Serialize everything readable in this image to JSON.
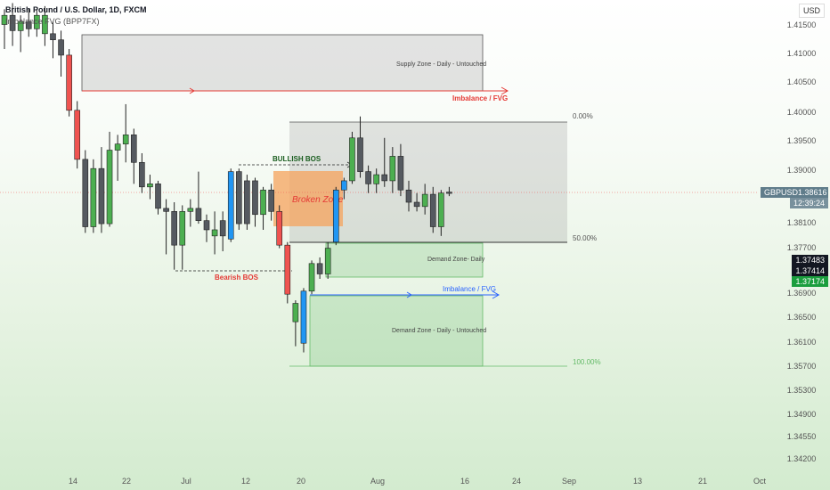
{
  "header": {
    "title": "British Pound / U.S. Dollar, 1D, FXCM",
    "subtitle": "Imbalance FVG (BPP7FX)"
  },
  "currency_button": "USD",
  "annotations": {
    "supply_zone": "Supply Zone - Daily - Untouched",
    "imbalance_top": "Imbalance / FVG",
    "imbalance_mid": "Imbalance / FVG",
    "bullish_bos": "BULLISH BOS",
    "bearish_bos": "Bearish BOS",
    "broken_zone": "Broken Zone",
    "demand_zone_1": "Demand Zone- Daily",
    "demand_zone_2": "Demand Zone - Daily  - Untouched",
    "fib_0": "0.00%",
    "fib_50": "50.00%",
    "fib_100": "100.00%"
  },
  "price_tags": {
    "symbol_label": "GBPUSD",
    "last_price": "1.38616",
    "countdown": "12:39:24",
    "tag1": "1.37483",
    "tag2": "1.37414",
    "tag3": "1.37174"
  },
  "colors": {
    "bull": "#4caf50",
    "bear": "#555a60",
    "strong_bull": "#2196f3",
    "strong_bear": "#ef5350",
    "imbalance_red": "#e53935",
    "imbalance_blue": "#2962ff",
    "broken_zone_fill": "#f5a35c",
    "grey_zone": "#9e9e9e",
    "green_zone": "#66bb6a"
  },
  "chart_data": {
    "type": "candlestick",
    "y_axis_ticks": [
      "1.41500",
      "1.41000",
      "1.40500",
      "1.40000",
      "1.39500",
      "1.39000",
      "1.38100",
      "1.37700",
      "1.36900",
      "1.36500",
      "1.36100",
      "1.35700",
      "1.35300",
      "1.34900",
      "1.34550",
      "1.34200"
    ],
    "x_axis_ticks": [
      "14",
      "22",
      "Jul",
      "12",
      "20",
      "Aug",
      "16",
      "24",
      "Sep",
      "13",
      "21",
      "Oct"
    ],
    "ylim": [
      1.339,
      1.4175
    ],
    "candles": [
      {
        "o": 1.4135,
        "h": 1.416,
        "l": 1.4095,
        "c": 1.415,
        "k": "bull"
      },
      {
        "o": 1.415,
        "h": 1.417,
        "l": 1.41,
        "c": 1.4125,
        "k": "bear"
      },
      {
        "o": 1.4125,
        "h": 1.415,
        "l": 1.409,
        "c": 1.414,
        "k": "bull"
      },
      {
        "o": 1.414,
        "h": 1.416,
        "l": 1.4115,
        "c": 1.4128,
        "k": "bear"
      },
      {
        "o": 1.4128,
        "h": 1.416,
        "l": 1.4115,
        "c": 1.415,
        "k": "bull"
      },
      {
        "o": 1.415,
        "h": 1.4165,
        "l": 1.41,
        "c": 1.412,
        "k": "bull"
      },
      {
        "o": 1.412,
        "h": 1.414,
        "l": 1.408,
        "c": 1.411,
        "k": "bear"
      },
      {
        "o": 1.411,
        "h": 1.4125,
        "l": 1.405,
        "c": 1.4085,
        "k": "bear"
      },
      {
        "o": 1.4085,
        "h": 1.4095,
        "l": 1.3985,
        "c": 1.3995,
        "k": "strong_bear"
      },
      {
        "o": 1.3995,
        "h": 1.401,
        "l": 1.39,
        "c": 1.3915,
        "k": "strong_bear"
      },
      {
        "o": 1.3915,
        "h": 1.393,
        "l": 1.3795,
        "c": 1.3805,
        "k": "bear"
      },
      {
        "o": 1.3805,
        "h": 1.3915,
        "l": 1.3795,
        "c": 1.39,
        "k": "bull"
      },
      {
        "o": 1.39,
        "h": 1.3935,
        "l": 1.3795,
        "c": 1.381,
        "k": "bear"
      },
      {
        "o": 1.381,
        "h": 1.396,
        "l": 1.3805,
        "c": 1.393,
        "k": "bull"
      },
      {
        "o": 1.393,
        "h": 1.3955,
        "l": 1.388,
        "c": 1.394,
        "k": "bull"
      },
      {
        "o": 1.394,
        "h": 1.4005,
        "l": 1.391,
        "c": 1.3955,
        "k": "bull"
      },
      {
        "o": 1.3955,
        "h": 1.3965,
        "l": 1.3875,
        "c": 1.391,
        "k": "bear"
      },
      {
        "o": 1.391,
        "h": 1.3925,
        "l": 1.386,
        "c": 1.387,
        "k": "bear"
      },
      {
        "o": 1.387,
        "h": 1.389,
        "l": 1.385,
        "c": 1.3875,
        "k": "bull"
      },
      {
        "o": 1.3875,
        "h": 1.388,
        "l": 1.3825,
        "c": 1.3835,
        "k": "bear"
      },
      {
        "o": 1.3835,
        "h": 1.385,
        "l": 1.376,
        "c": 1.383,
        "k": "bear"
      },
      {
        "o": 1.383,
        "h": 1.3845,
        "l": 1.3735,
        "c": 1.3775,
        "k": "bear"
      },
      {
        "o": 1.3775,
        "h": 1.384,
        "l": 1.3735,
        "c": 1.383,
        "k": "bull"
      },
      {
        "o": 1.383,
        "h": 1.385,
        "l": 1.3805,
        "c": 1.3835,
        "k": "bull"
      },
      {
        "o": 1.3835,
        "h": 1.3895,
        "l": 1.381,
        "c": 1.3815,
        "k": "bear"
      },
      {
        "o": 1.3815,
        "h": 1.3825,
        "l": 1.378,
        "c": 1.38,
        "k": "bear"
      },
      {
        "o": 1.38,
        "h": 1.383,
        "l": 1.376,
        "c": 1.379,
        "k": "bull"
      },
      {
        "o": 1.379,
        "h": 1.383,
        "l": 1.3765,
        "c": 1.3815,
        "k": "bear"
      },
      {
        "o": 1.3785,
        "h": 1.39,
        "l": 1.378,
        "c": 1.3895,
        "k": "strong_bull"
      },
      {
        "o": 1.3895,
        "h": 1.39,
        "l": 1.38,
        "c": 1.381,
        "k": "bear"
      },
      {
        "o": 1.381,
        "h": 1.389,
        "l": 1.38,
        "c": 1.388,
        "k": "bear"
      },
      {
        "o": 1.388,
        "h": 1.3885,
        "l": 1.3805,
        "c": 1.3825,
        "k": "bear"
      },
      {
        "o": 1.3825,
        "h": 1.387,
        "l": 1.38,
        "c": 1.3865,
        "k": "bull"
      },
      {
        "o": 1.3865,
        "h": 1.3875,
        "l": 1.3815,
        "c": 1.383,
        "k": "bear"
      },
      {
        "o": 1.383,
        "h": 1.384,
        "l": 1.377,
        "c": 1.3775,
        "k": "strong_bear"
      },
      {
        "o": 1.3775,
        "h": 1.378,
        "l": 1.368,
        "c": 1.3695,
        "k": "strong_bear"
      },
      {
        "o": 1.365,
        "h": 1.3685,
        "l": 1.361,
        "c": 1.368,
        "k": "bull"
      },
      {
        "o": 1.3615,
        "h": 1.3705,
        "l": 1.36,
        "c": 1.37,
        "k": "strong_bull"
      },
      {
        "o": 1.37,
        "h": 1.375,
        "l": 1.3695,
        "c": 1.3745,
        "k": "bull"
      },
      {
        "o": 1.3745,
        "h": 1.3755,
        "l": 1.372,
        "c": 1.3728,
        "k": "bear"
      },
      {
        "o": 1.3728,
        "h": 1.378,
        "l": 1.372,
        "c": 1.377,
        "k": "bull"
      },
      {
        "o": 1.378,
        "h": 1.387,
        "l": 1.3775,
        "c": 1.3865,
        "k": "strong_bull"
      },
      {
        "o": 1.3865,
        "h": 1.3885,
        "l": 1.385,
        "c": 1.388,
        "k": "strong_bull"
      },
      {
        "o": 1.388,
        "h": 1.396,
        "l": 1.3875,
        "c": 1.395,
        "k": "bull"
      },
      {
        "o": 1.395,
        "h": 1.3985,
        "l": 1.3885,
        "c": 1.3895,
        "k": "bear"
      },
      {
        "o": 1.3895,
        "h": 1.3905,
        "l": 1.386,
        "c": 1.3875,
        "k": "bear"
      },
      {
        "o": 1.3875,
        "h": 1.39,
        "l": 1.386,
        "c": 1.389,
        "k": "bull"
      },
      {
        "o": 1.389,
        "h": 1.395,
        "l": 1.387,
        "c": 1.388,
        "k": "bear"
      },
      {
        "o": 1.388,
        "h": 1.3935,
        "l": 1.386,
        "c": 1.392,
        "k": "bull"
      },
      {
        "o": 1.392,
        "h": 1.394,
        "l": 1.3855,
        "c": 1.3865,
        "k": "bear"
      },
      {
        "o": 1.3865,
        "h": 1.388,
        "l": 1.383,
        "c": 1.3845,
        "k": "bear"
      },
      {
        "o": 1.3845,
        "h": 1.386,
        "l": 1.383,
        "c": 1.3838,
        "k": "bear"
      },
      {
        "o": 1.3838,
        "h": 1.3875,
        "l": 1.3825,
        "c": 1.3858,
        "k": "bull"
      },
      {
        "o": 1.3858,
        "h": 1.387,
        "l": 1.3795,
        "c": 1.3805,
        "k": "bear"
      },
      {
        "o": 1.3805,
        "h": 1.3865,
        "l": 1.379,
        "c": 1.386,
        "k": "bull"
      },
      {
        "o": 1.386,
        "h": 1.387,
        "l": 1.3855,
        "c": 1.38616,
        "k": "bear"
      }
    ]
  }
}
